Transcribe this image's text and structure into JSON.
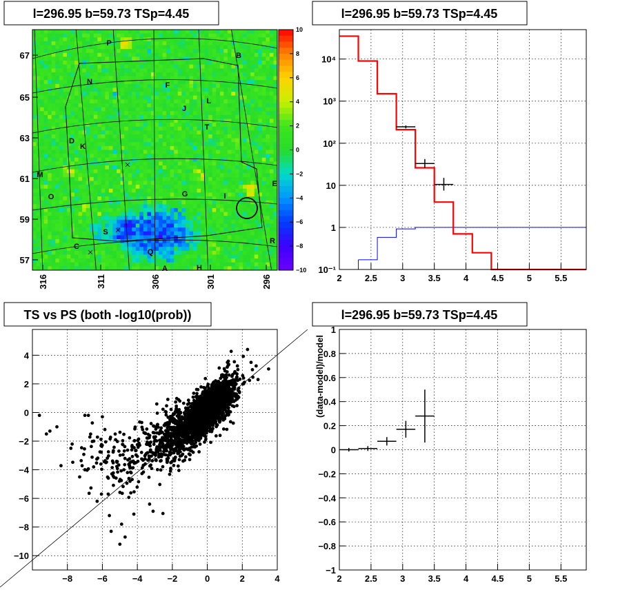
{
  "chart_data": [
    {
      "type": "heatmap",
      "title": "l=296.95 b=59.73 TSp=4.45",
      "x_ticks": [
        "316",
        "311",
        "306",
        "301",
        "296"
      ],
      "y_ticks": [
        "67",
        "65",
        "63",
        "61",
        "59",
        "57"
      ],
      "colorbar_ticks": [
        "10",
        "8",
        "6",
        "4",
        "2",
        "0",
        "−2",
        "−4",
        "−6",
        "−8",
        "−10"
      ],
      "zlim": [
        -10,
        10
      ],
      "region_labels": [
        "P",
        "B",
        "N",
        "F",
        "J",
        "L",
        "T",
        "D",
        "K",
        "M",
        "O",
        "G",
        "I",
        "E",
        "S",
        "C",
        "Q",
        "R",
        "A",
        "H"
      ],
      "colors": {
        "low": "#6a00ff",
        "mid": "#22dd22",
        "high": "#ff0000"
      }
    },
    {
      "type": "line",
      "title": "l=296.95 b=59.73 TSp=4.45",
      "x_ticks": [
        "2",
        "2.5",
        "3",
        "3.5",
        "4",
        "4.5",
        "5",
        "5.5"
      ],
      "y_ticks": [
        "10⁴",
        "10³",
        "10²",
        "10",
        "1",
        "10⁻¹"
      ],
      "xlim": [
        2,
        5.9
      ],
      "ylim": [
        0.1,
        50000
      ],
      "yscale": "log",
      "step_red": {
        "edges": [
          2,
          2.3,
          2.6,
          2.9,
          3.2,
          3.5,
          3.8,
          4.1,
          4.4,
          5.9
        ],
        "values": [
          35000,
          9000,
          1500,
          210,
          26,
          4,
          0.7,
          0.25,
          0.1
        ]
      },
      "step_blue": {
        "edges": [
          2.3,
          2.6,
          2.9,
          3.2,
          5.9
        ],
        "values": [
          0.17,
          0.58,
          0.92,
          1.0
        ]
      },
      "points": [
        {
          "x": 3.05,
          "y": 245,
          "xerr": 0.15,
          "ylo": 225,
          "yhi": 265
        },
        {
          "x": 3.35,
          "y": 33,
          "xerr": 0.15,
          "ylo": 26,
          "yhi": 42
        },
        {
          "x": 3.65,
          "y": 10.5,
          "xerr": 0.15,
          "ylo": 7.5,
          "yhi": 15
        }
      ],
      "colors": {
        "model": "#ff0000",
        "background": "#0000ff",
        "data": "#000000"
      }
    },
    {
      "type": "scatter",
      "title": "TS vs PS (both -log10(prob))",
      "x_ticks": [
        "−8",
        "−6",
        "−4",
        "−2",
        "0",
        "2",
        "4"
      ],
      "y_ticks": [
        "4",
        "2",
        "0",
        "−2",
        "−4",
        "−6",
        "−8",
        "−10"
      ],
      "xlim": [
        -10,
        4
      ],
      "ylim": [
        -11,
        5.8
      ],
      "diagonal": true
    },
    {
      "type": "scatter",
      "title": "l=296.95 b=59.73 TSp=4.45",
      "ylabel": "(data-model)/model",
      "x_ticks": [
        "2",
        "2.5",
        "3",
        "3.5",
        "4",
        "4.5",
        "5",
        "5.5"
      ],
      "y_ticks": [
        "1",
        "0.8",
        "0.6",
        "0.4",
        "0.2",
        "0",
        "−0.2",
        "−0.4",
        "−0.6",
        "−0.8",
        "−1"
      ],
      "xlim": [
        2,
        5.9
      ],
      "ylim": [
        -1,
        1
      ],
      "points": [
        {
          "x": 2.15,
          "y": 0.0,
          "xerr": 0.15,
          "yerr": 0.015
        },
        {
          "x": 2.45,
          "y": 0.01,
          "xerr": 0.15,
          "yerr": 0.02
        },
        {
          "x": 2.75,
          "y": 0.07,
          "xerr": 0.15,
          "yerr": 0.035
        },
        {
          "x": 3.05,
          "y": 0.17,
          "xerr": 0.15,
          "yerr": 0.07
        },
        {
          "x": 3.35,
          "y": 0.28,
          "xerr": 0.15,
          "yerr": 0.22
        }
      ]
    }
  ]
}
